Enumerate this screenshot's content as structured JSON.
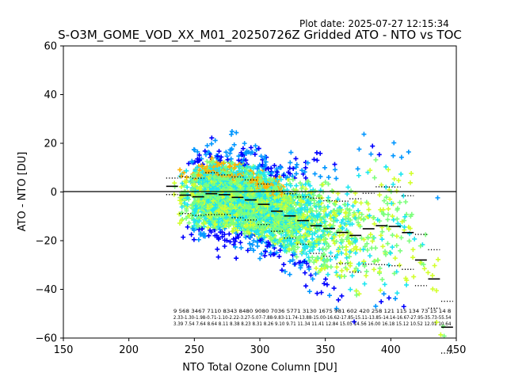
{
  "header": {
    "plot_date": "Plot date: 2025-07-27 12:15:34",
    "title": "S-O3M_GOME_VOD_XX_M01_20250726Z Gridded ATO - NTO vs TOC"
  },
  "chart_data": {
    "type": "scatter",
    "title": "S-O3M_GOME_VOD_XX_M01_20250726Z Gridded ATO - NTO vs TOC",
    "xlabel": "NTO Total Ozone Column [DU]",
    "ylabel": "ATO - NTO [DU]",
    "xlim": [
      150,
      450
    ],
    "ylim": [
      -60,
      60
    ],
    "xticks": [
      "150",
      "200",
      "250",
      "300",
      "350",
      "400",
      "450"
    ],
    "yticks": [
      "−60",
      "−40",
      "−20",
      "0",
      "20",
      "40",
      "60"
    ],
    "grid": false,
    "zero_line": true,
    "marker": "+",
    "colors": [
      "#0000ff",
      "#0096ff",
      "#1ee6f0",
      "#7dff7d",
      "#d2ff2d",
      "#ffb400"
    ],
    "bins": [
      {
        "x": 233,
        "mean": 2.33,
        "std": 3.39
      },
      {
        "x": 243,
        "mean": -1.3,
        "std": 7.54
      },
      {
        "x": 253,
        "mean": -1.98,
        "std": 7.64
      },
      {
        "x": 263,
        "mean": -0.71,
        "std": 8.64
      },
      {
        "x": 273,
        "mean": -1.1,
        "std": 8.11
      },
      {
        "x": 283,
        "mean": -2.22,
        "std": 8.38
      },
      {
        "x": 293,
        "mean": -3.27,
        "std": 8.23
      },
      {
        "x": 303,
        "mean": -5.07,
        "std": 8.31
      },
      {
        "x": 313,
        "mean": -7.88,
        "std": 8.26
      },
      {
        "x": 323,
        "mean": -9.83,
        "std": 9.1
      },
      {
        "x": 333,
        "mean": -11.74,
        "std": 9.71
      },
      {
        "x": 343,
        "mean": -13.88,
        "std": 11.34
      },
      {
        "x": 353,
        "mean": -15.0,
        "std": 11.41
      },
      {
        "x": 363,
        "mean": -16.62,
        "std": 12.84
      },
      {
        "x": 373,
        "mean": -17.85,
        "std": 15.05
      },
      {
        "x": 383,
        "mean": -15.11,
        "std": 14.56
      },
      {
        "x": 393,
        "mean": -13.85,
        "std": 16.0
      },
      {
        "x": 403,
        "mean": -14.14,
        "std": 16.18
      },
      {
        "x": 413,
        "mean": -16.67,
        "std": 15.12
      },
      {
        "x": 423,
        "mean": -27.95,
        "std": 10.52
      },
      {
        "x": 433,
        "mean": -35.73,
        "std": 12.01
      },
      {
        "x": 443,
        "mean": -55.54,
        "std": 10.64
      }
    ],
    "stats_rows": [
      "9 568 3467 7110 8343 8480 9080 7036 5771 3130 1675 981 602 420 258 121 115 134 73 15 14 8",
      "2.33-1.30-1.98-0.71-1.10-2.22-3.27-5.07-7.88-9.83-11.74-13.88-15.00-16.62-17.85-15.11-13.85-14.14-16.67-27.95-35.73-55.54",
      "3.39 7.54 7.64 8.64 8.11 8.38 8.23 8.31 8.26 9.10 9.71 11.34 11.41 12.84 15.05 14.56 16.00 16.18 15.12 10.52 12.01 10.64"
    ]
  }
}
